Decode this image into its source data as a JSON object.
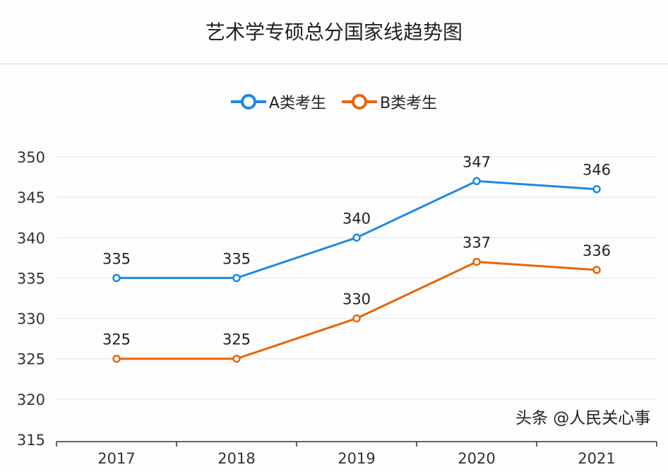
{
  "chart_data": {
    "type": "line",
    "title": "艺术学专硕总分国家线趋势图",
    "categories": [
      "2017",
      "2018",
      "2019",
      "2020",
      "2021"
    ],
    "series": [
      {
        "name": "A类考生",
        "values": [
          335,
          335,
          340,
          347,
          346
        ],
        "color": "#1e88e5"
      },
      {
        "name": "B类考生",
        "values": [
          325,
          325,
          330,
          337,
          336
        ],
        "color": "#e8650f"
      }
    ],
    "ylim": [
      315,
      350
    ],
    "yticks": [
      315,
      320,
      325,
      330,
      335,
      340,
      345,
      350
    ],
    "grid": true,
    "legend": "top-center",
    "xlabel": "",
    "ylabel": ""
  },
  "watermark": "头条 @人民关心事"
}
